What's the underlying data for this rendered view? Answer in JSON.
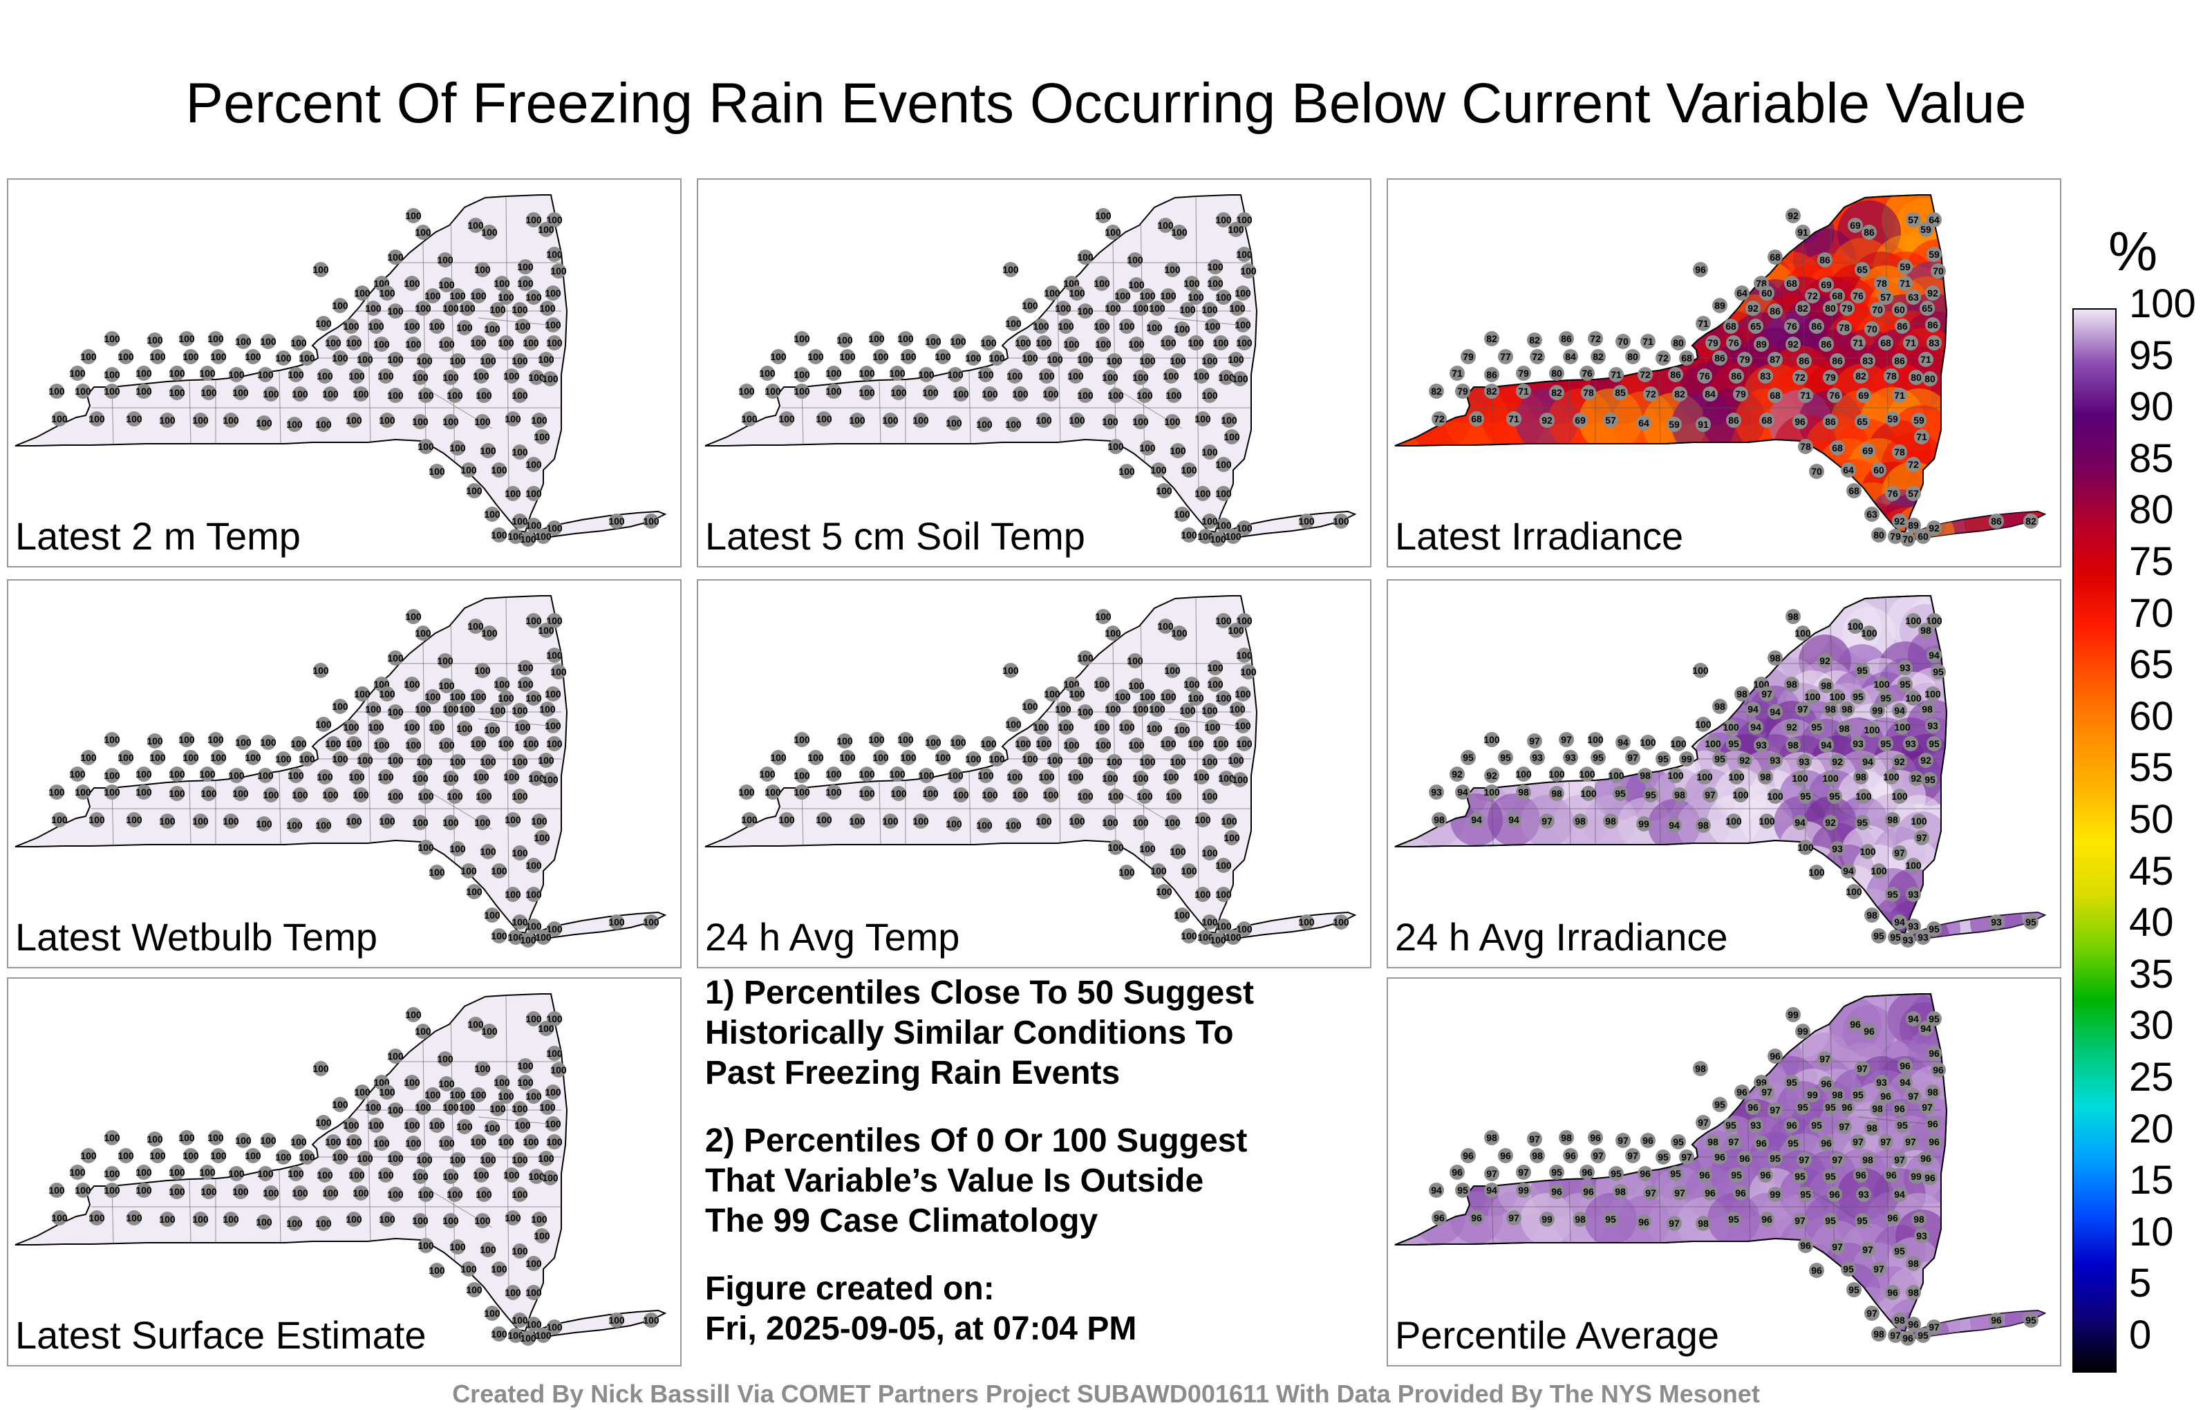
{
  "title": "Percent Of Freezing Rain Events Occurring Below Current Variable Value",
  "panels": [
    {
      "label": "Latest 2 m Temp",
      "mode": "uniform",
      "values": [
        100
      ]
    },
    {
      "label": "Latest 5 cm Soil Temp",
      "mode": "uniform",
      "values": [
        100
      ]
    },
    {
      "label": "Latest Irradiance",
      "mode": "irradiance",
      "values": [
        92,
        69,
        57,
        64,
        59,
        91,
        86,
        68,
        96,
        86,
        65,
        59,
        59,
        78,
        68,
        69,
        78,
        71,
        70,
        64,
        60,
        72,
        68,
        76,
        57,
        63,
        92,
        89,
        92,
        86,
        82,
        80,
        79,
        70,
        60,
        65,
        71,
        68,
        65,
        76,
        86,
        78,
        70,
        86,
        86,
        82,
        82,
        86,
        72,
        70,
        71,
        80,
        79,
        76,
        89,
        92,
        86,
        71,
        68,
        71,
        83,
        79,
        77,
        72,
        84,
        82,
        80,
        72,
        68,
        86,
        79,
        87,
        86,
        86,
        83,
        86,
        71,
        71,
        86,
        79,
        80,
        76,
        71,
        72,
        86,
        76,
        86,
        83,
        72,
        79,
        82,
        78,
        80,
        80,
        82,
        79,
        82,
        71,
        82,
        78,
        85,
        72,
        82,
        84,
        79,
        68,
        71,
        76,
        69,
        71,
        72,
        68,
        71
      ]
    },
    {
      "label": "Latest Wetbulb Temp",
      "mode": "uniform",
      "values": [
        100
      ]
    },
    {
      "label": "24 h Avg Temp",
      "mode": "uniform",
      "values": [
        100
      ]
    },
    {
      "label": "24 h Avg Irradiance",
      "mode": "avg_irradiance",
      "values": [
        98,
        100,
        100,
        100,
        98,
        100,
        100,
        98,
        100,
        92,
        95,
        93,
        94,
        100,
        98,
        98,
        100,
        95,
        95,
        98,
        97,
        100,
        100,
        95,
        95,
        100,
        100,
        98,
        94,
        94,
        97,
        98,
        98,
        99,
        94,
        98,
        100,
        100,
        94,
        92,
        95,
        98,
        100,
        100,
        93,
        100,
        97,
        97,
        100,
        94,
        100,
        100,
        100,
        95,
        93,
        98,
        94,
        93,
        95,
        93,
        95,
        95,
        95,
        93,
        93,
        95,
        97,
        95,
        99,
        95,
        92,
        93,
        93,
        92,
        94,
        92,
        92,
        92,
        92,
        100,
        100,
        100,
        100
      ]
    },
    {
      "label": "Latest Surface Estimate",
      "mode": "uniform",
      "values": [
        100
      ]
    },
    {
      "label": "Percentile Average",
      "mode": "average",
      "values": [
        99,
        96,
        94,
        95,
        94,
        99,
        96,
        96,
        98,
        97,
        97,
        96,
        96,
        99,
        95,
        96,
        93,
        94,
        96,
        96,
        97,
        99,
        98,
        95,
        96,
        97,
        98,
        95,
        96,
        97,
        95,
        95,
        96,
        98,
        96,
        97,
        97,
        95,
        93,
        96,
        95,
        97,
        98,
        95,
        96,
        98,
        97,
        98,
        96,
        97,
        96,
        95,
        98,
        97,
        96,
        95,
        96,
        97,
        97,
        97,
        96,
        96,
        96,
        98,
        96,
        97,
        97,
        95,
        97,
        96,
        96,
        95,
        97,
        97,
        98,
        97,
        96,
        96,
        97,
        97,
        95,
        96,
        95,
        96,
        95,
        96,
        95,
        96,
        95,
        95,
        96,
        96
      ]
    }
  ],
  "notes": {
    "note1": "1) Percentiles Close To 50 Suggest\nHistorically Similar Conditions To\nPast Freezing Rain Events",
    "note2": "2) Percentiles Of 0 Or 100 Suggest\nThat Variable’s Value Is Outside\nThe 99 Case Climatology",
    "created_label": "Figure created on:",
    "created_date": "Fri, 2025-09-05, at 07:04 PM"
  },
  "legend": {
    "unit": "%",
    "ticks": [
      "100",
      "95",
      "90",
      "85",
      "80",
      "75",
      "70",
      "65",
      "60",
      "55",
      "50",
      "45",
      "40",
      "35",
      "30",
      "25",
      "20",
      "15",
      "10",
      "5",
      "0"
    ],
    "colors": [
      "#000000",
      "#0d0078",
      "#0000c8",
      "#0050ff",
      "#00a0ff",
      "#00dcdc",
      "#00c878",
      "#00b400",
      "#78d200",
      "#dcdc00",
      "#ffe600",
      "#ffb400",
      "#ff8c00",
      "#ff5a00",
      "#ff1e00",
      "#dc0000",
      "#b4002d",
      "#78005a",
      "#5a0078",
      "#8c50b4",
      "#f0e6f5"
    ],
    "map_fill_uniform": "#f0ebf4",
    "marker_color": "#8c8c8c"
  },
  "credit": "Created By Nick Bassill Via COMET Partners Project SUBAWD001611 With Data Provided By The NYS Mesonet"
}
